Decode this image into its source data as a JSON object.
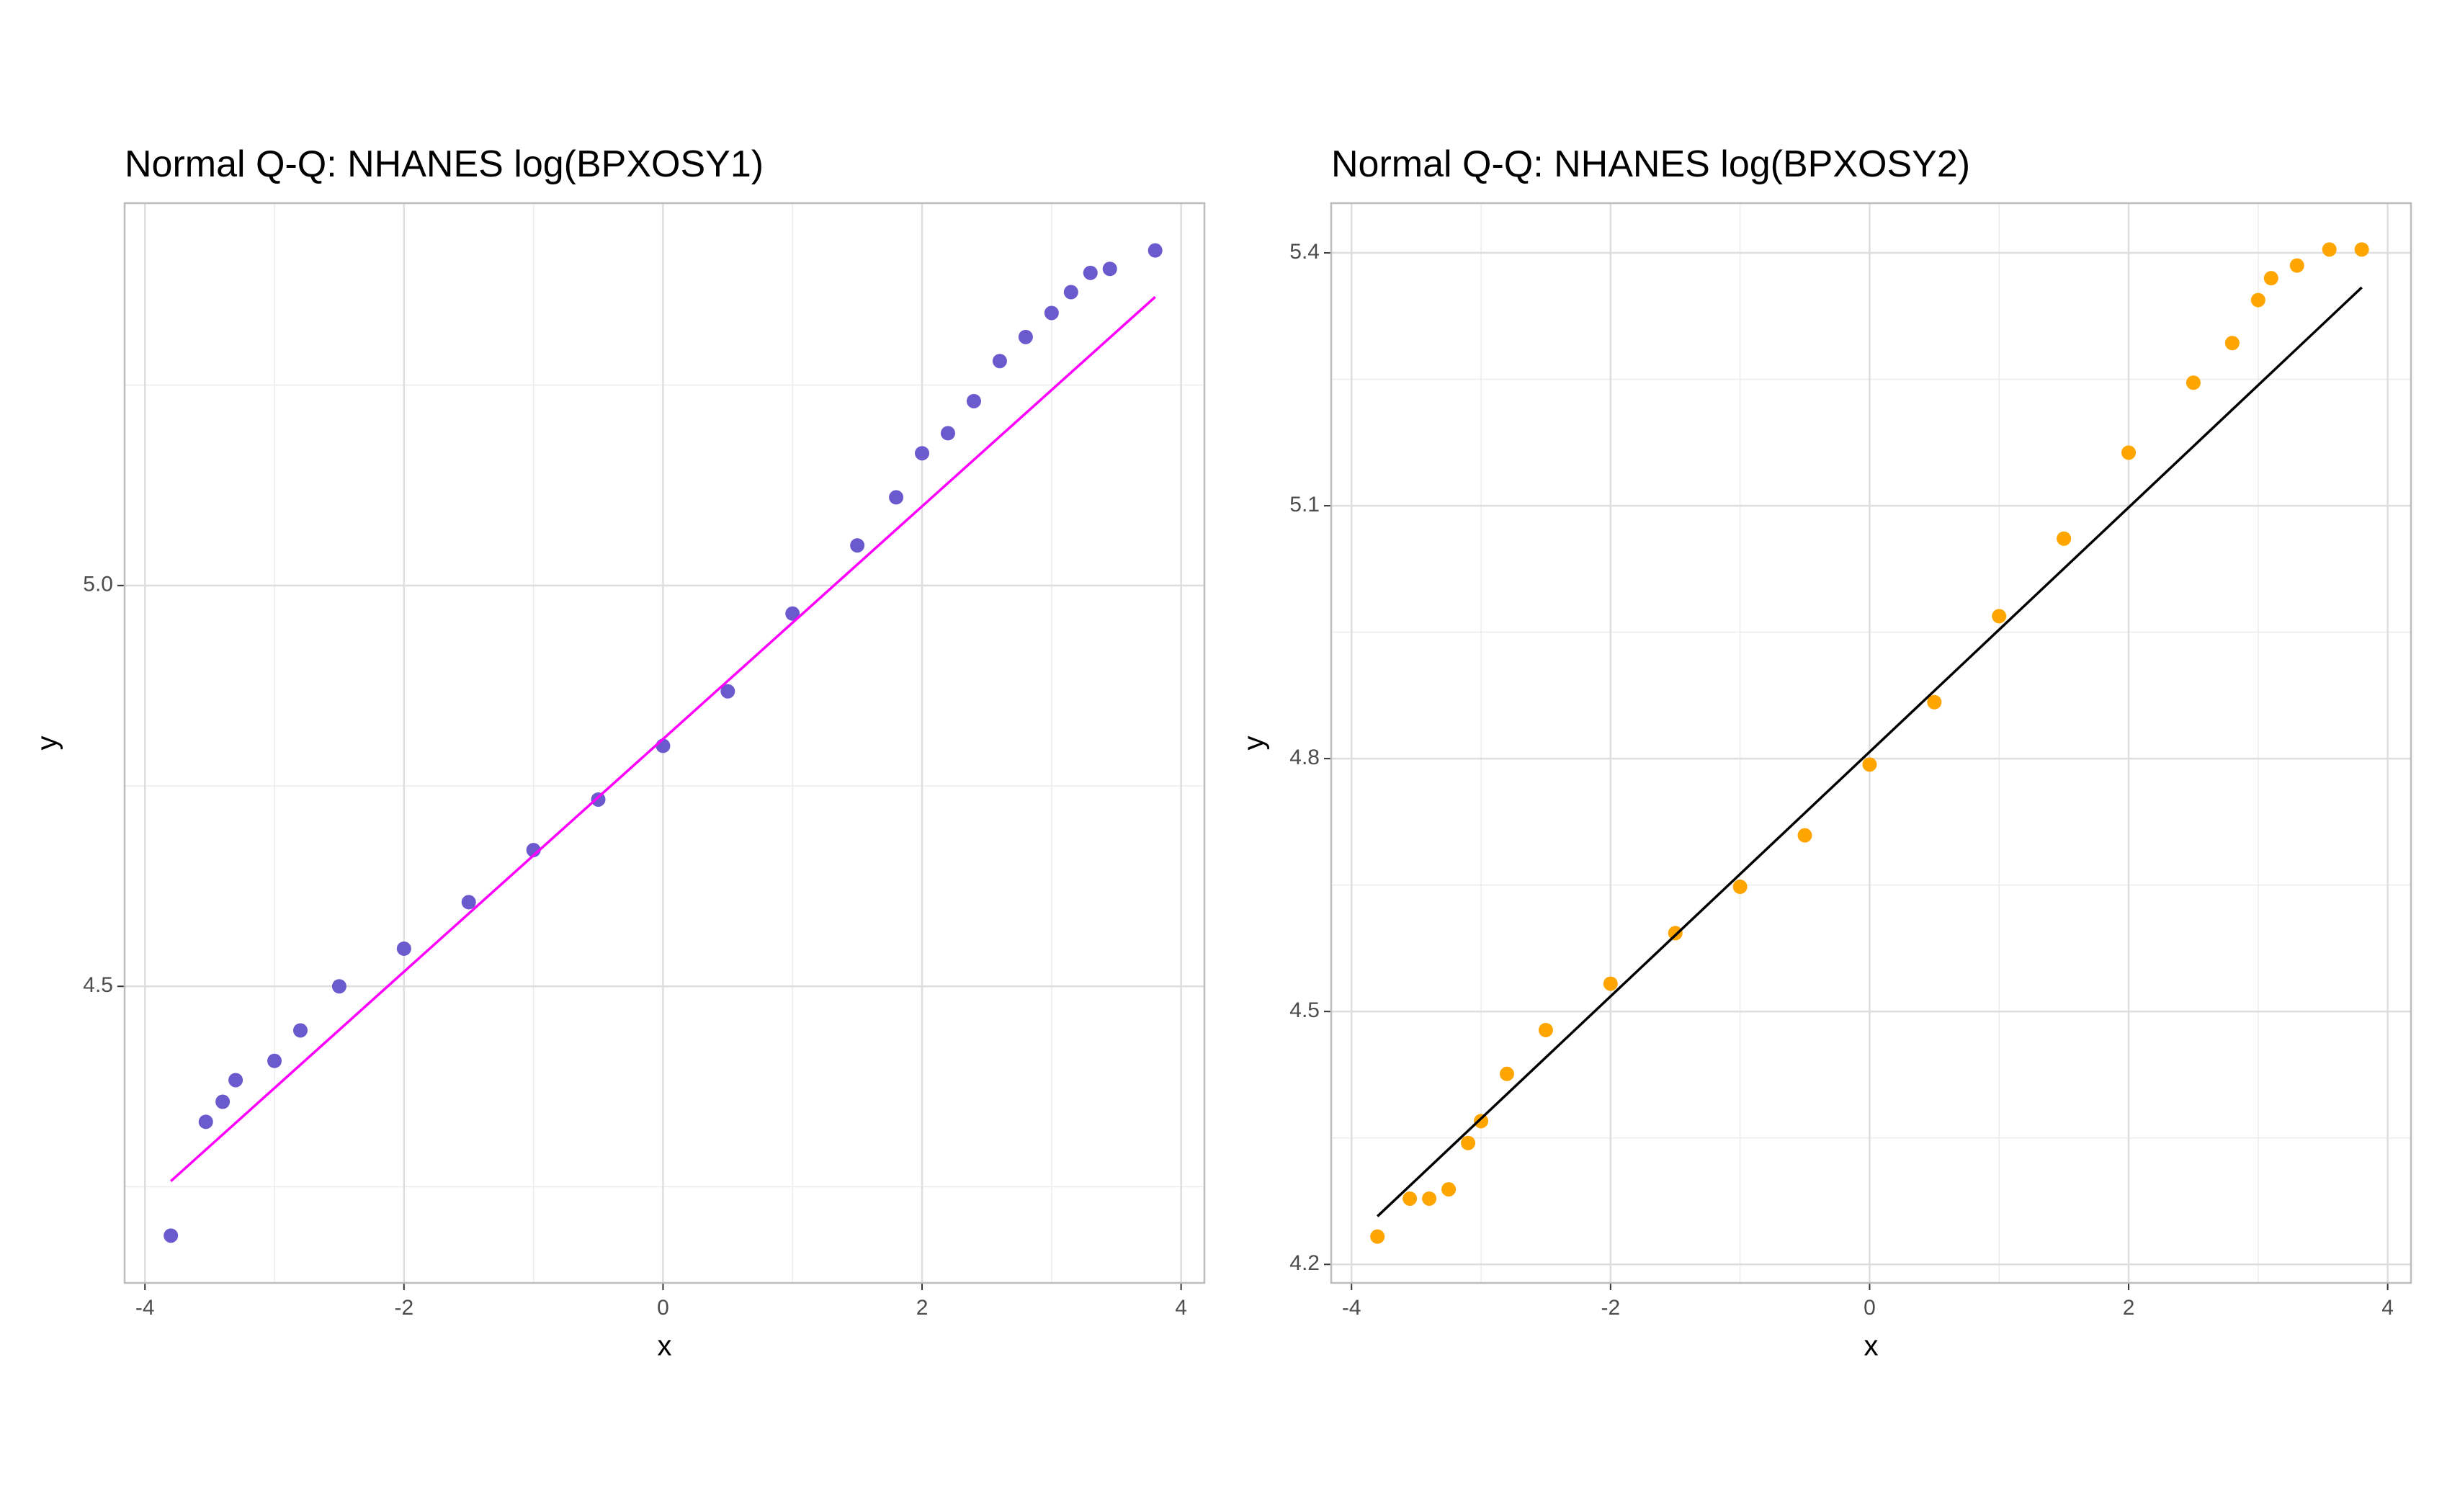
{
  "chart_data": [
    {
      "type": "scatter",
      "title": "Normal Q-Q: NHANES log(BPXOSY1)",
      "x_label": "x",
      "y_label": "y",
      "xlim": [
        -4.157,
        4.18
      ],
      "ylim": [
        4.13,
        5.477
      ],
      "xticks": [
        -4,
        -2,
        0,
        2,
        4
      ],
      "yticks": [
        4.5,
        {
          "value": 5,
          "label": "5.0"
        }
      ],
      "grid": true,
      "points": {
        "color": "#6a5acd",
        "x": [
          -3.8,
          -3.53,
          -3.4,
          -3.3,
          -3.0,
          -2.8,
          -2.5,
          -2.0,
          -1.5,
          -1.0,
          -0.5,
          0,
          0.5,
          1.0,
          1.5,
          1.8,
          2.0,
          2.2,
          2.4,
          2.6,
          2.8,
          3.0,
          3.15,
          3.3,
          3.45,
          3.8
        ],
        "y": [
          4.189,
          4.331,
          4.356,
          4.383,
          4.407,
          4.445,
          4.5,
          4.547,
          4.605,
          4.67,
          4.733,
          4.8,
          4.868,
          4.965,
          5.05,
          5.11,
          5.165,
          5.19,
          5.23,
          5.28,
          5.31,
          5.34,
          5.366,
          5.39,
          5.395,
          5.418
        ]
      },
      "line": {
        "color": "#ff00ff",
        "x": [
          -3.8,
          3.8
        ],
        "y": [
          4.257,
          5.36
        ]
      }
    },
    {
      "type": "scatter",
      "title": "Normal Q-Q: NHANES log(BPXOSY2)",
      "x_label": "x",
      "y_label": "y",
      "xlim": [
        -4.157,
        4.18
      ],
      "ylim": [
        4.178,
        5.459
      ],
      "xticks": [
        -4,
        -2,
        0,
        2,
        4
      ],
      "yticks": [
        4.2,
        4.5,
        4.8,
        5.1,
        5.4
      ],
      "grid": true,
      "points": {
        "color": "#ffa500",
        "x": [
          -3.8,
          -3.55,
          -3.4,
          -3.25,
          -3.1,
          -3.0,
          -2.8,
          -2.5,
          -2.0,
          -1.5,
          -1.0,
          -0.5,
          0,
          0.5,
          1.0,
          1.5,
          2.0,
          2.5,
          2.8,
          3.0,
          3.1,
          3.3,
          3.55,
          3.8
        ],
        "y": [
          4.233,
          4.278,
          4.278,
          4.289,
          4.344,
          4.37,
          4.426,
          4.478,
          4.533,
          4.593,
          4.648,
          4.709,
          4.793,
          4.867,
          4.969,
          5.061,
          5.163,
          5.246,
          5.293,
          5.344,
          5.37,
          5.385,
          5.404,
          5.404
        ]
      },
      "line": {
        "color": "#000000",
        "x": [
          -3.8,
          3.8
        ],
        "y": [
          4.257,
          5.359
        ]
      }
    }
  ]
}
